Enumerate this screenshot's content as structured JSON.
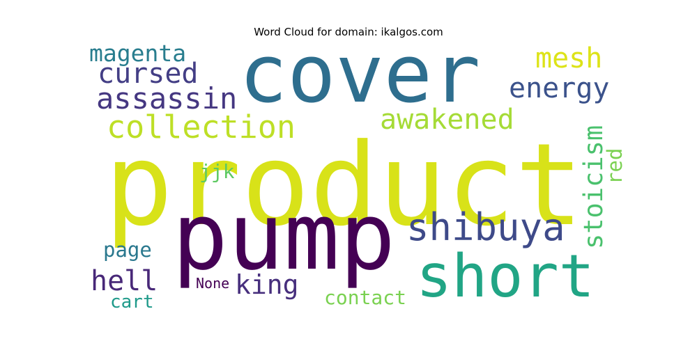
{
  "title": "Word Cloud for domain: ikalgos.com",
  "words": [
    {
      "text": "product",
      "color": "#d8e219"
    },
    {
      "text": "cover",
      "color": "#2e6e8e"
    },
    {
      "text": "pump",
      "color": "#440154"
    },
    {
      "text": "short",
      "color": "#21a585"
    },
    {
      "text": "shibuya",
      "color": "#3e4a89"
    },
    {
      "text": "collection",
      "color": "#bddf26"
    },
    {
      "text": "awakened",
      "color": "#a5db36"
    },
    {
      "text": "assassin",
      "color": "#453781"
    },
    {
      "text": "cursed",
      "color": "#433e85"
    },
    {
      "text": "energy",
      "color": "#3b528b"
    },
    {
      "text": "magenta",
      "color": "#287d8e"
    },
    {
      "text": "mesh",
      "color": "#dde318"
    },
    {
      "text": "stoicism",
      "color": "#4ac16d"
    },
    {
      "text": "red",
      "color": "#7ad151"
    },
    {
      "text": "jjk",
      "color": "#5ec962"
    },
    {
      "text": "page",
      "color": "#2a788e"
    },
    {
      "text": "hell",
      "color": "#482878"
    },
    {
      "text": "king",
      "color": "#472f7d"
    },
    {
      "text": "None",
      "color": "#440154"
    },
    {
      "text": "cart",
      "color": "#1f9a8a"
    },
    {
      "text": "contact",
      "color": "#7ad151"
    }
  ]
}
